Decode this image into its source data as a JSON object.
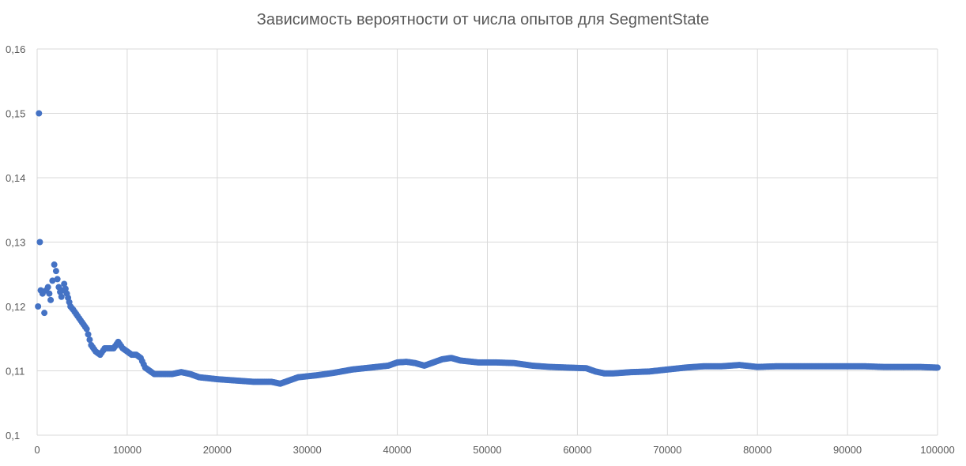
{
  "chart_data": {
    "type": "scatter",
    "title": "Зависимость вероятности от числа опытов для SegmentState",
    "xlabel": "",
    "ylabel": "",
    "xlim": [
      0,
      100000
    ],
    "ylim": [
      0.1,
      0.16
    ],
    "x_ticks": [
      "0",
      "10000",
      "20000",
      "30000",
      "40000",
      "50000",
      "60000",
      "70000",
      "80000",
      "90000",
      "100000"
    ],
    "y_ticks": [
      "0,1",
      "0,11",
      "0,12",
      "0,13",
      "0,14",
      "0,15",
      "0,16"
    ],
    "grid": true,
    "legend": "none",
    "colors": {
      "marker": "#4472C4",
      "grid": "#d9d9d9",
      "text": "#595959"
    },
    "key_points": [
      [
        100,
        0.12
      ],
      [
        200,
        0.15
      ],
      [
        300,
        0.13
      ],
      [
        400,
        0.1225
      ],
      [
        600,
        0.122
      ],
      [
        800,
        0.119
      ],
      [
        1000,
        0.1225
      ],
      [
        1200,
        0.123
      ],
      [
        1500,
        0.121
      ],
      [
        1700,
        0.124
      ],
      [
        1900,
        0.1265
      ],
      [
        2100,
        0.1255
      ],
      [
        2400,
        0.123
      ],
      [
        2700,
        0.1215
      ],
      [
        3000,
        0.1235
      ],
      [
        3300,
        0.122
      ],
      [
        3700,
        0.12
      ],
      [
        4000,
        0.1195
      ],
      [
        4500,
        0.1185
      ],
      [
        5000,
        0.1175
      ],
      [
        5500,
        0.1165
      ],
      [
        6000,
        0.114
      ],
      [
        6500,
        0.113
      ],
      [
        7000,
        0.1125
      ],
      [
        7500,
        0.1135
      ],
      [
        8000,
        0.1135
      ],
      [
        8500,
        0.1135
      ],
      [
        9000,
        0.1145
      ],
      [
        9500,
        0.1135
      ],
      [
        10000,
        0.113
      ],
      [
        10500,
        0.1125
      ],
      [
        11000,
        0.1125
      ],
      [
        11500,
        0.112
      ],
      [
        12000,
        0.1105
      ],
      [
        12500,
        0.11
      ],
      [
        13000,
        0.1095
      ],
      [
        14000,
        0.1095
      ],
      [
        15000,
        0.1095
      ],
      [
        16000,
        0.1098
      ],
      [
        17000,
        0.1095
      ],
      [
        18000,
        0.109
      ],
      [
        20000,
        0.1087
      ],
      [
        22000,
        0.1085
      ],
      [
        24000,
        0.1083
      ],
      [
        26000,
        0.1083
      ],
      [
        27000,
        0.108
      ],
      [
        28000,
        0.1085
      ],
      [
        29000,
        0.109
      ],
      [
        31000,
        0.1093
      ],
      [
        33000,
        0.1097
      ],
      [
        35000,
        0.1102
      ],
      [
        37000,
        0.1105
      ],
      [
        39000,
        0.1108
      ],
      [
        40000,
        0.1113
      ],
      [
        41000,
        0.1114
      ],
      [
        42000,
        0.1112
      ],
      [
        43000,
        0.1108
      ],
      [
        44000,
        0.1113
      ],
      [
        45000,
        0.1118
      ],
      [
        46000,
        0.112
      ],
      [
        47000,
        0.1116
      ],
      [
        49000,
        0.1113
      ],
      [
        51000,
        0.1113
      ],
      [
        53000,
        0.1112
      ],
      [
        55000,
        0.1108
      ],
      [
        57000,
        0.1106
      ],
      [
        59000,
        0.1105
      ],
      [
        61000,
        0.1104
      ],
      [
        62000,
        0.1099
      ],
      [
        63000,
        0.1096
      ],
      [
        64000,
        0.1096
      ],
      [
        66000,
        0.1098
      ],
      [
        68000,
        0.1099
      ],
      [
        70000,
        0.1102
      ],
      [
        72000,
        0.1105
      ],
      [
        74000,
        0.1107
      ],
      [
        76000,
        0.1107
      ],
      [
        78000,
        0.1109
      ],
      [
        80000,
        0.1106
      ],
      [
        82000,
        0.1107
      ],
      [
        84000,
        0.1107
      ],
      [
        86000,
        0.1107
      ],
      [
        88000,
        0.1107
      ],
      [
        90000,
        0.1107
      ],
      [
        92000,
        0.1107
      ],
      [
        94000,
        0.1106
      ],
      [
        96000,
        0.1106
      ],
      [
        98000,
        0.1106
      ],
      [
        100000,
        0.1105
      ]
    ]
  }
}
